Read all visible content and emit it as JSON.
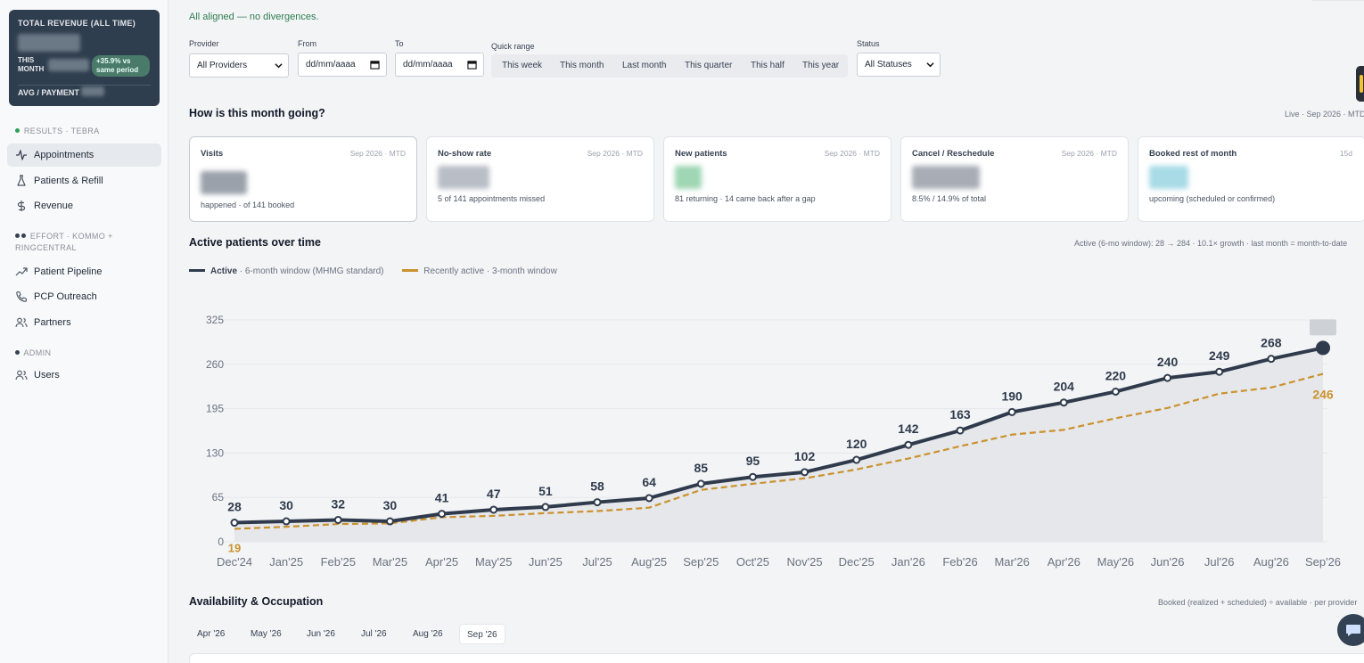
{
  "sidebar": {
    "revenue_card": {
      "title": "TOTAL REVENUE (ALL TIME)",
      "this_month_label": "THIS MONTH",
      "badge": "+35.9% vs same period",
      "avg_label": "AVG / PAYMENT"
    },
    "sections": [
      {
        "label": "RESULTS · TEBRA",
        "dot_colors": [
          "#2e9e5b"
        ]
      },
      {
        "label": "EFFORT · KOMMO + RINGCENTRAL",
        "dot_colors": [
          "#374151",
          "#374151"
        ]
      },
      {
        "label": "ADMIN",
        "dot_colors": [
          "#374151"
        ]
      }
    ],
    "items": [
      {
        "label": "Appointments",
        "icon": "activity-icon",
        "active": true
      },
      {
        "label": "Patients & Refill",
        "icon": "flask-icon"
      },
      {
        "label": "Revenue",
        "icon": "dollar-icon"
      },
      {
        "label": "Patient Pipeline",
        "icon": "trending-up-icon"
      },
      {
        "label": "PCP Outreach",
        "icon": "phone-icon"
      },
      {
        "label": "Partners",
        "icon": "users-icon"
      },
      {
        "label": "Users",
        "icon": "users-icon"
      }
    ]
  },
  "status_line": "All aligned — no divergences.",
  "filters": {
    "provider_label": "Provider",
    "provider_value": "All Providers",
    "from_label": "From",
    "from_placeholder": "dd/mm/aaaa",
    "to_label": "To",
    "to_placeholder": "dd/mm/aaaa",
    "quick_label": "Quick range",
    "quick": [
      "This week",
      "This month",
      "Last month",
      "This quarter",
      "This half",
      "This year"
    ],
    "status_label": "Status",
    "status_value": "All Statuses"
  },
  "month_section": {
    "title": "How is this month going?",
    "note": "Live · Sep 2026 · MTD"
  },
  "kpis": [
    {
      "title": "Visits",
      "period": "Sep 2026 · MTD",
      "sub": "happened · of 141 booked",
      "blur_color": "#9aa1aa"
    },
    {
      "title": "No-show rate",
      "period": "Sep 2026 · MTD",
      "sub": "5 of 141 appointments missed",
      "blur_color": "#b9bec6"
    },
    {
      "title": "New patients",
      "period": "Sep 2026 · MTD",
      "sub": "81 returning · 14 came back after a gap",
      "blur_color": "#9fd6b4"
    },
    {
      "title": "Cancel / Reschedule",
      "period": "Sep 2026 · MTD",
      "sub": "8.5% / 14.9% of total",
      "blur_color": "#a8adb5"
    },
    {
      "title": "Booked rest of month",
      "period": "15d",
      "sub": "upcoming (scheduled or confirmed)",
      "blur_color": "#a8dbe6"
    }
  ],
  "active_section": {
    "title": "Active patients over time",
    "note": "Active (6-mo window): 28 → 284 · 10.1× growth · last month = month-to-date"
  },
  "legend": {
    "active_bold": "Active",
    "active_rest": " · 6-month window (MHMG standard)",
    "recent": "Recently active · 3-month window"
  },
  "colors": {
    "active": "#2f3b4c",
    "recent": "#c9922e",
    "accent_green": "#2f7d4f"
  },
  "chart_data": {
    "type": "line",
    "x": [
      "Dec'24",
      "Jan'25",
      "Feb'25",
      "Mar'25",
      "Apr'25",
      "May'25",
      "Jun'25",
      "Jul'25",
      "Aug'25",
      "Sep'25",
      "Oct'25",
      "Nov'25",
      "Dec'25",
      "Jan'26",
      "Feb'26",
      "Mar'26",
      "Apr'26",
      "May'26",
      "Jun'26",
      "Jul'26",
      "Aug'26",
      "Sep'26"
    ],
    "series": [
      {
        "name": "Active",
        "values": [
          28,
          30,
          32,
          30,
          41,
          47,
          51,
          58,
          64,
          85,
          95,
          102,
          120,
          142,
          163,
          190,
          204,
          220,
          240,
          249,
          268,
          284
        ],
        "labels": [
          "28",
          "30",
          "32",
          "30",
          "41",
          "47",
          "51",
          "58",
          "64",
          "85",
          "95",
          "102",
          "120",
          "142",
          "163",
          "190",
          "204",
          "220",
          "240",
          "249",
          "268",
          ""
        ]
      },
      {
        "name": "Recently active",
        "values": [
          19,
          22,
          26,
          27,
          36,
          38,
          42,
          45,
          50,
          76,
          85,
          93,
          106,
          122,
          140,
          157,
          164,
          181,
          196,
          217,
          226,
          246
        ],
        "end_label": "246",
        "start_label": "19"
      }
    ],
    "yticks": [
      0,
      65,
      130,
      195,
      260,
      325
    ],
    "ylim": [
      0,
      325
    ],
    "grid": true
  },
  "availability": {
    "title": "Availability & Occupation",
    "note": "Booked (realized + scheduled) ÷ available · per provider",
    "months": [
      "Apr '26",
      "May '26",
      "Jun '26",
      "Jul '26",
      "Aug '26",
      "Sep '26"
    ],
    "active_month": "Sep '26"
  }
}
